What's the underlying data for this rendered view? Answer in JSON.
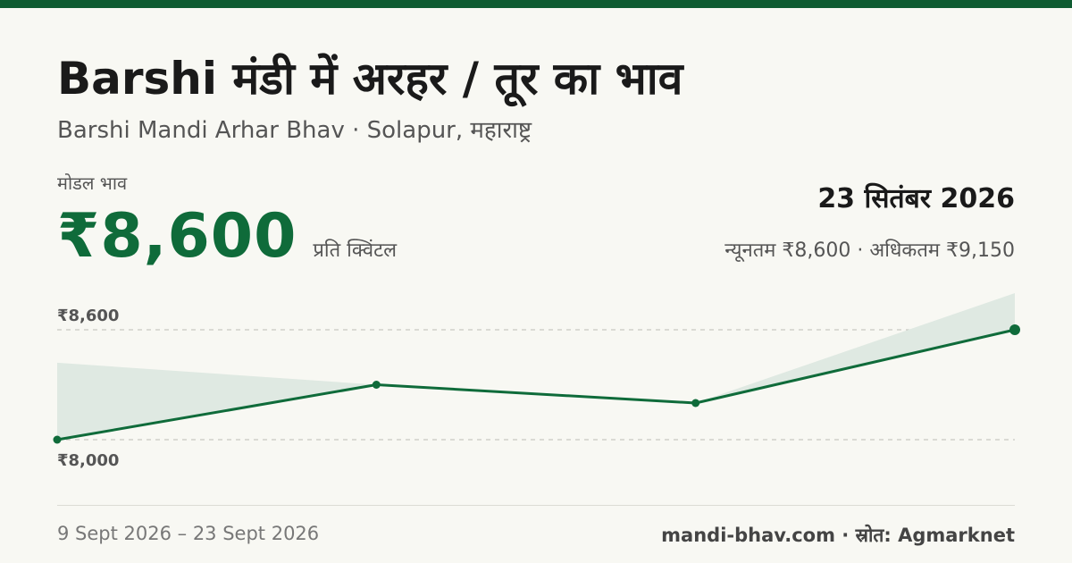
{
  "header": {
    "title": "Barshi मंडी में अरहर / तूर का भाव",
    "subtitle": "Barshi Mandi Arhar Bhav · Solapur, महाराष्ट्र"
  },
  "price": {
    "label": "मोडल भाव",
    "value": "₹8,600",
    "unit": "प्रति क्विंटल"
  },
  "summary": {
    "date": "23 सितंबर 2026",
    "range": "न्यूनतम ₹8,600 · अधिकतम ₹9,150"
  },
  "footer": {
    "date_range": "9 Sept 2026 – 23 Sept 2026",
    "source": "mandi-bhav.com · स्रोत: Agmarknet"
  },
  "colors": {
    "accent": "#0f6b3a",
    "band": "#dfe9e2",
    "top_bar": "#0f5c32"
  },
  "chart_data": {
    "type": "line",
    "x": [
      "9 Sept 2026",
      "",
      "",
      "23 Sept 2026"
    ],
    "series": [
      {
        "values": [
          8000,
          8300,
          8200,
          8600
        ]
      }
    ],
    "band": {
      "min": [
        8000,
        8300,
        8200,
        8600
      ],
      "max": [
        8420,
        8300,
        8200,
        9150
      ]
    },
    "y_ticks": [
      {
        "value": 8600,
        "label": "₹8,600"
      },
      {
        "value": 8000,
        "label": "₹8,000"
      }
    ],
    "grid": true
  }
}
